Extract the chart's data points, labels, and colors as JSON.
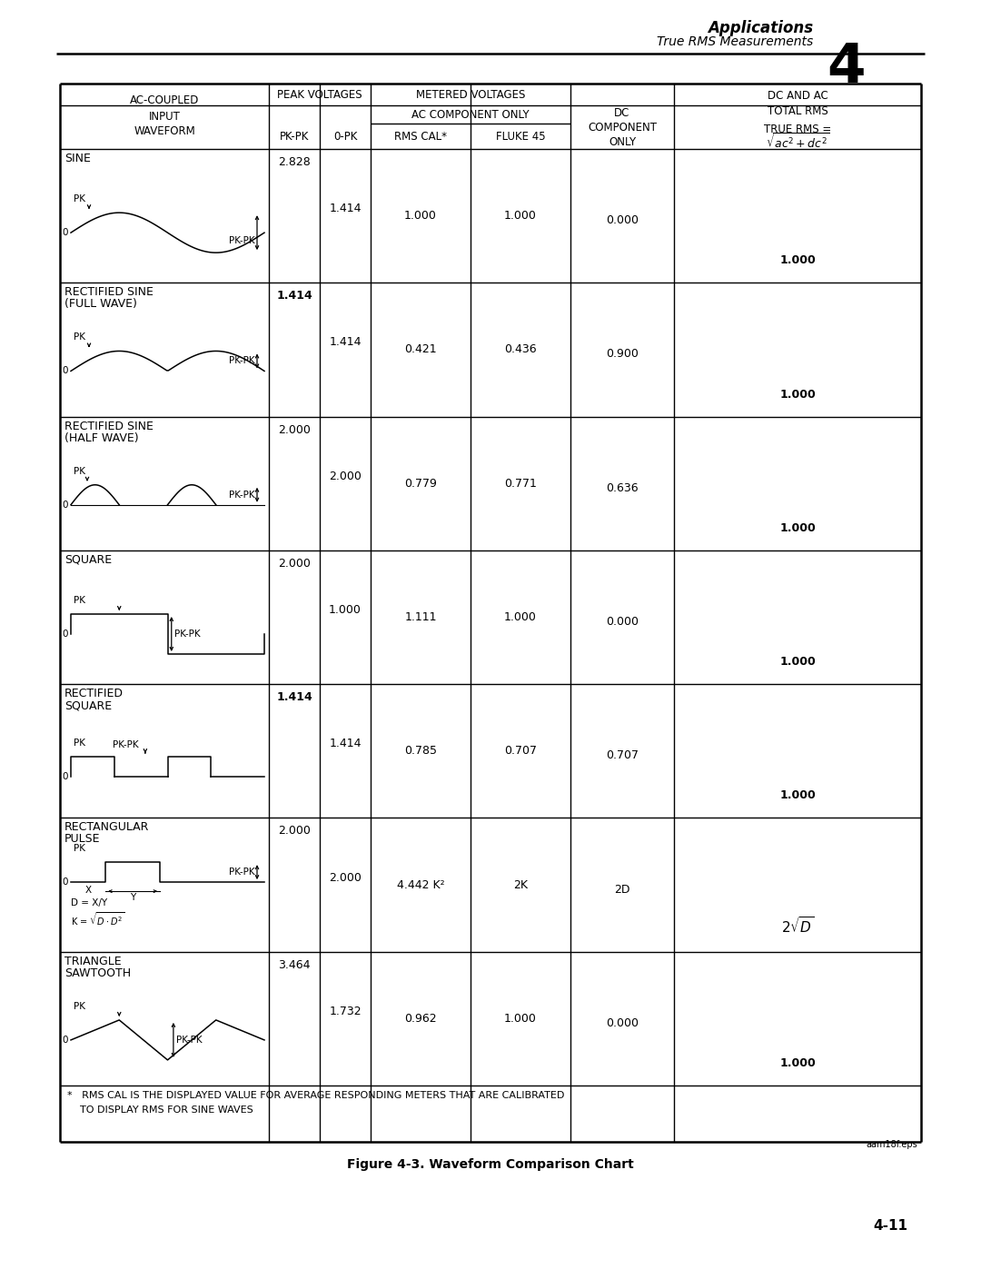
{
  "page_header_title": "Applications",
  "page_header_subtitle": "True RMS Measurements",
  "page_number": "4-11",
  "chapter_number": "4",
  "figure_caption": "Figure 4-3. Waveform Comparison Chart",
  "footnote_line1": "*   RMS CAL IS THE DISPLAYED VALUE FOR AVERAGE RESPONDING METERS THAT ARE CALIBRATED",
  "footnote_line2": "    TO DISPLAY RMS FOR SINE WAVES",
  "file_ref": "aam18f.eps",
  "rows": [
    {
      "label1": "SINE",
      "label2": "",
      "pk_pk": "2.828",
      "zero_pk": "1.414",
      "rms_cal": "1.000",
      "fluke45": "1.000",
      "dc": "0.000",
      "true_rms": "1.000",
      "pk_pk_bold": false,
      "waveform": "sine"
    },
    {
      "label1": "RECTIFIED SINE",
      "label2": "(FULL WAVE)",
      "pk_pk": "1.414",
      "zero_pk": "1.414",
      "rms_cal": "0.421",
      "fluke45": "0.436",
      "dc": "0.900",
      "true_rms": "1.000",
      "pk_pk_bold": true,
      "waveform": "rect_sine_full"
    },
    {
      "label1": "RECTIFIED SINE",
      "label2": "(HALF WAVE)",
      "pk_pk": "2.000",
      "zero_pk": "2.000",
      "rms_cal": "0.779",
      "fluke45": "0.771",
      "dc": "0.636",
      "true_rms": "1.000",
      "pk_pk_bold": false,
      "waveform": "rect_sine_half"
    },
    {
      "label1": "SQUARE",
      "label2": "",
      "pk_pk": "2.000",
      "zero_pk": "1.000",
      "rms_cal": "1.111",
      "fluke45": "1.000",
      "dc": "0.000",
      "true_rms": "1.000",
      "pk_pk_bold": false,
      "waveform": "square"
    },
    {
      "label1": "RECTIFIED",
      "label2": "SQUARE",
      "pk_pk": "1.414",
      "zero_pk": "1.414",
      "rms_cal": "0.785",
      "fluke45": "0.707",
      "dc": "0.707",
      "true_rms": "1.000",
      "pk_pk_bold": true,
      "waveform": "rect_square"
    },
    {
      "label1": "RECTANGULAR",
      "label2": "PULSE",
      "pk_pk": "2.000",
      "zero_pk": "2.000",
      "rms_cal": "4.442 K²",
      "fluke45": "2K",
      "dc": "2D",
      "true_rms": "2√D",
      "pk_pk_bold": false,
      "waveform": "rect_pulse"
    },
    {
      "label1": "TRIANGLE",
      "label2": "SAWTOOTH",
      "pk_pk": "3.464",
      "zero_pk": "1.732",
      "rms_cal": "0.962",
      "fluke45": "1.000",
      "dc": "0.000",
      "true_rms": "1.000",
      "pk_pk_bold": false,
      "waveform": "triangle"
    }
  ]
}
